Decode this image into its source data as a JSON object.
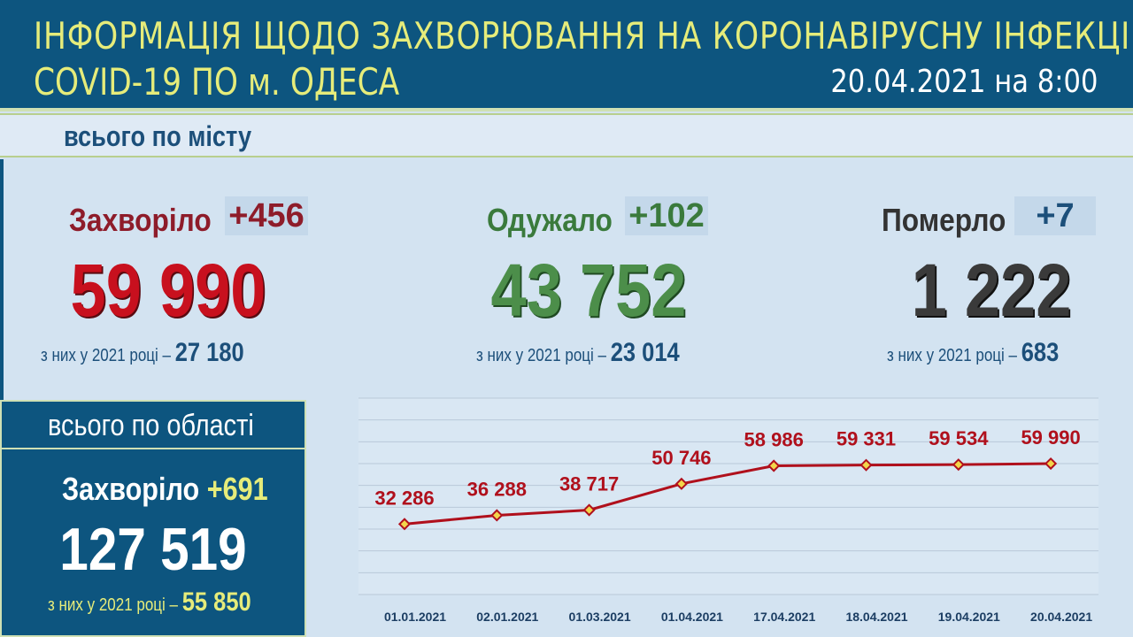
{
  "header": {
    "title_line1": "ІНФОРМАЦІЯ ЩОДО ЗАХВОРЮВАННЯ НА КОРОНАВІРУСНУ ІНФЕКЦІЮ",
    "title_line2": "COVID-19 ПО м. ОДЕСА",
    "date": "20.04.2021 на 8:00"
  },
  "city": {
    "label": "всього по місту",
    "stats": [
      {
        "label": "Захворіло",
        "delta": "+456",
        "total": "59 990",
        "sub_prefix": "з них у 2021 році –",
        "sub_value": "27 180",
        "color": "#b0101c"
      },
      {
        "label": "Одужало",
        "delta": "+102",
        "total": "43 752",
        "sub_prefix": "з них у 2021 році –",
        "sub_value": "23 014",
        "color": "#3a7a3c"
      },
      {
        "label": "Померло",
        "delta": "+7",
        "total": "1 222",
        "sub_prefix": "з них у 2021 році –",
        "sub_value": "683",
        "color": "#333333"
      }
    ]
  },
  "oblast": {
    "title": "всього по області",
    "label": "Захворіло",
    "delta": "+691",
    "total": "127 519",
    "sub_prefix": "з них у 2021 році –",
    "sub_value": "55 850"
  },
  "colors": {
    "header_bg": "#0d557f",
    "header_text": "#e6ec7a",
    "line": "#b0101c",
    "marker_fill": "#f3d64a"
  },
  "chart_data": {
    "type": "line",
    "categories": [
      "01.01.2021",
      "02.01.2021",
      "01.03.2021",
      "01.04.2021",
      "17.04.2021",
      "18.04.2021",
      "19.04.2021",
      "20.04.2021"
    ],
    "series": [
      {
        "values": [
          32286,
          36288,
          38717,
          50746,
          58986,
          59331,
          59534,
          59990
        ]
      }
    ],
    "data_labels": [
      "32 286",
      "36 288",
      "38 717",
      "50 746",
      "58 986",
      "59 331",
      "59 534",
      "59 990"
    ],
    "xlabel": "",
    "ylabel": "",
    "ylim": [
      0,
      90000
    ],
    "grid": true,
    "legend": "none"
  }
}
